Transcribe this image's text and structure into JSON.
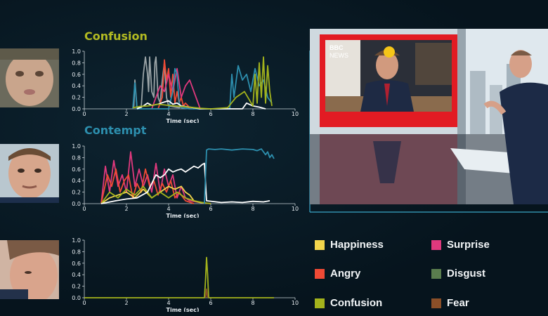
{
  "thumbnails": [
    {
      "name": "child-face-thumbnail"
    },
    {
      "name": "professor-face-thumbnail"
    },
    {
      "name": "anchor-face-thumbnail"
    }
  ],
  "video": {
    "logo_bbc": "BBC",
    "logo_news": "NEWS",
    "badge_emoji": "😒"
  },
  "legend": [
    {
      "label": "Happiness",
      "color": "#f3d54c"
    },
    {
      "label": "Surprise",
      "color": "#e0397d"
    },
    {
      "label": "Angry",
      "color": "#f04a35"
    },
    {
      "label": "Disgust",
      "color": "#5a7d4e"
    },
    {
      "label": "Confusion",
      "color": "#a3b31c"
    },
    {
      "label": "Fear",
      "color": "#8a4f28"
    }
  ],
  "colors": {
    "confusion_title": "#b3bb22",
    "contempt_title": "#2d8fae",
    "contempt": "#2d8fae",
    "neutral_white": "#ffffff",
    "grey": "#9aa3a6",
    "accent_line": "#3aa6c6"
  },
  "chart_data": [
    {
      "type": "line",
      "title": "Confusion",
      "xlabel": "Time (sec)",
      "ylabel": "",
      "xlim": [
        0,
        10
      ],
      "ylim": [
        0,
        1.0
      ],
      "xticks": [
        "0",
        "2",
        "4",
        "6",
        "8",
        "10"
      ],
      "yticks": [
        "0.0",
        "0.2",
        "0.4",
        "0.6",
        "0.8",
        "1.0"
      ],
      "series": [
        {
          "color": "#9aa3a6",
          "x": [
            2.3,
            2.35,
            2.4,
            2.5,
            2.7,
            2.8,
            2.9,
            3.0,
            3.05,
            3.1,
            3.2,
            3.3,
            3.35,
            3.4,
            3.5,
            3.6,
            3.7,
            3.8,
            3.9,
            4.0,
            4.5,
            4.6,
            5.0,
            5.5
          ],
          "y": [
            0,
            0.05,
            0.5,
            0.02,
            0.02,
            0.6,
            0.9,
            0.6,
            0.3,
            0.9,
            0.3,
            0.2,
            0.8,
            0.9,
            0.2,
            0.1,
            0.5,
            0.8,
            0.2,
            0.05,
            0.02,
            0.05,
            0.02,
            0
          ]
        },
        {
          "color": "#f04a35",
          "x": [
            3.5,
            3.7,
            3.8,
            3.9,
            4.0,
            4.1,
            4.2,
            4.3,
            4.4,
            4.5,
            4.6,
            4.7,
            4.8,
            5.0,
            5.2
          ],
          "y": [
            0,
            0.2,
            0.85,
            0.5,
            0.7,
            0.2,
            0.6,
            0.1,
            0.3,
            0.1,
            0.2,
            0.05,
            0.1,
            0.02,
            0
          ]
        },
        {
          "color": "#e0397d",
          "x": [
            3.2,
            3.4,
            3.6,
            3.8,
            4.0,
            4.2,
            4.4,
            4.6,
            4.8,
            5.0,
            5.2,
            5.4,
            5.5
          ],
          "y": [
            0,
            0.2,
            0.4,
            0.3,
            0.6,
            0.3,
            0.7,
            0.2,
            0.4,
            0.5,
            0.3,
            0.1,
            0
          ]
        },
        {
          "color": "#2d8fae",
          "x": [
            2.3,
            2.4,
            2.5,
            3.0,
            4.0,
            4.2,
            4.3,
            4.4,
            4.5,
            4.6,
            5.0,
            6.9,
            7.0,
            7.1,
            7.3,
            7.5,
            7.7,
            7.9,
            8.1,
            8.3,
            8.5,
            8.7,
            8.9
          ],
          "y": [
            0,
            0.45,
            0,
            0,
            0,
            0.3,
            0.7,
            0.6,
            0.1,
            0.02,
            0,
            0,
            0.6,
            0.2,
            0.75,
            0.5,
            0.6,
            0.3,
            0.7,
            0.4,
            0.5,
            0.2,
            0.1
          ]
        },
        {
          "color": "#ffffff",
          "x": [
            2.5,
            2.8,
            3.0,
            3.2,
            3.5,
            3.8,
            4.0,
            4.2,
            4.4,
            4.6,
            5.0,
            5.5,
            7.5,
            7.7,
            8.0,
            8.3,
            8.6
          ],
          "y": [
            0,
            0.05,
            0.1,
            0.06,
            0.08,
            0.12,
            0.14,
            0.08,
            0.1,
            0.05,
            0.03,
            0,
            0,
            0.1,
            0.05,
            0.03,
            0
          ]
        },
        {
          "color": "#a3b31c",
          "x": [
            2.3,
            2.6,
            3.0,
            3.5,
            4.0,
            5.0,
            5.5,
            6.0,
            6.8,
            7.2,
            7.6,
            8.0,
            8.1,
            8.2,
            8.3,
            8.4,
            8.5,
            8.6,
            8.7,
            8.8,
            8.9
          ],
          "y": [
            0.02,
            0.04,
            0.05,
            0.08,
            0.06,
            0.03,
            0.01,
            0.0,
            0.02,
            0.2,
            0.3,
            0.05,
            0.6,
            0.1,
            0.8,
            0.2,
            0.9,
            0.1,
            0.75,
            0.3,
            0.05
          ]
        }
      ]
    },
    {
      "type": "line",
      "title": "Contempt",
      "xlabel": "Time (sec)",
      "ylabel": "",
      "xlim": [
        0,
        10
      ],
      "ylim": [
        0,
        1.0
      ],
      "xticks": [
        "0",
        "2",
        "4",
        "6",
        "8",
        "10"
      ],
      "yticks": [
        "0.0",
        "0.2",
        "0.4",
        "0.6",
        "0.8",
        "1.0"
      ],
      "series": [
        {
          "color": "#e0397d",
          "x": [
            0.8,
            1.0,
            1.2,
            1.4,
            1.6,
            1.8,
            2.0,
            2.2,
            2.4,
            2.6,
            2.8,
            3.0,
            3.2,
            3.4,
            3.6,
            3.8,
            4.0,
            4.2,
            4.4,
            4.6,
            4.8,
            5.0,
            5.5,
            6.0
          ],
          "y": [
            0,
            0.65,
            0.2,
            0.75,
            0.3,
            0.5,
            0.2,
            0.9,
            0.3,
            0.6,
            0.3,
            0.5,
            0.2,
            0.7,
            0.2,
            0.6,
            0.3,
            0.5,
            0.1,
            0.3,
            0.1,
            0.05,
            0.02,
            0
          ]
        },
        {
          "color": "#f04a35",
          "x": [
            0.8,
            1.1,
            1.3,
            1.5,
            1.7,
            1.9,
            2.1,
            2.3,
            2.5,
            2.7,
            2.9,
            3.1,
            3.3,
            3.5,
            3.7,
            3.9,
            4.1,
            4.3,
            4.5,
            4.8,
            5.2
          ],
          "y": [
            0,
            0.5,
            0.3,
            0.6,
            0.2,
            0.4,
            0.5,
            0.1,
            0.35,
            0.2,
            0.6,
            0.3,
            0.4,
            0.15,
            0.35,
            0.2,
            0.4,
            0.1,
            0.2,
            0.05,
            0
          ]
        },
        {
          "color": "#f3d54c",
          "x": [
            0.8,
            1.2,
            1.6,
            2.0,
            2.4,
            2.8,
            3.2,
            3.6,
            4.0,
            4.3,
            4.6,
            4.8,
            5.0,
            5.2,
            5.5,
            6.0
          ],
          "y": [
            0,
            0.1,
            0.15,
            0.2,
            0.1,
            0.25,
            0.1,
            0.2,
            0.3,
            0.25,
            0.3,
            0.2,
            0.15,
            0.05,
            0.02,
            0
          ]
        },
        {
          "color": "#a3b31c",
          "x": [
            0.8,
            1.2,
            1.6,
            2.0,
            2.4,
            2.8,
            3.2,
            3.6,
            4.0,
            4.4,
            4.8,
            5.2,
            5.6,
            6.0
          ],
          "y": [
            0,
            0.2,
            0.1,
            0.25,
            0.15,
            0.3,
            0.1,
            0.2,
            0.1,
            0.2,
            0.1,
            0.05,
            0.02,
            0
          ]
        },
        {
          "color": "#ffffff",
          "x": [
            0.8,
            1.5,
            2.0,
            2.5,
            3.0,
            3.2,
            3.4,
            3.6,
            3.8,
            4.0,
            4.2,
            4.4,
            4.6,
            4.8,
            5.0,
            5.2,
            5.4,
            5.6,
            5.7,
            5.8,
            6.5,
            7.0,
            7.5,
            8.0,
            8.5,
            8.8
          ],
          "y": [
            0,
            0.05,
            0.08,
            0.1,
            0.2,
            0.35,
            0.5,
            0.45,
            0.5,
            0.6,
            0.55,
            0.58,
            0.6,
            0.55,
            0.6,
            0.65,
            0.62,
            0.68,
            0.7,
            0.05,
            0.02,
            0.03,
            0.02,
            0.04,
            0.03,
            0.05
          ]
        },
        {
          "color": "#2d8fae",
          "x": [
            5.7,
            5.8,
            5.9,
            6.2,
            6.5,
            7.0,
            7.5,
            8.0,
            8.2,
            8.4,
            8.6,
            8.7,
            8.8,
            8.9,
            9.0
          ],
          "y": [
            0,
            0.93,
            0.95,
            0.94,
            0.95,
            0.93,
            0.95,
            0.94,
            0.92,
            0.95,
            0.85,
            0.9,
            0.8,
            0.85,
            0.78
          ]
        }
      ]
    },
    {
      "type": "line",
      "title": "",
      "xlabel": "Time (sec)",
      "ylabel": "",
      "xlim": [
        0,
        10
      ],
      "ylim": [
        0,
        1.0
      ],
      "xticks": [
        "0",
        "2",
        "4",
        "6",
        "8",
        "10"
      ],
      "yticks": [
        "0.0",
        "0.2",
        "0.4",
        "0.6",
        "0.8",
        "1.0"
      ],
      "series": [
        {
          "color": "#a3b31c",
          "x": [
            0,
            5.7,
            5.75,
            5.8,
            5.85,
            5.9,
            6.0,
            9.0
          ],
          "y": [
            0,
            0,
            0.3,
            0.7,
            0.4,
            0,
            0,
            0
          ]
        },
        {
          "color": "#8a4f28",
          "x": [
            5.75,
            5.8,
            5.85
          ],
          "y": [
            0,
            0.15,
            0
          ]
        }
      ]
    }
  ]
}
